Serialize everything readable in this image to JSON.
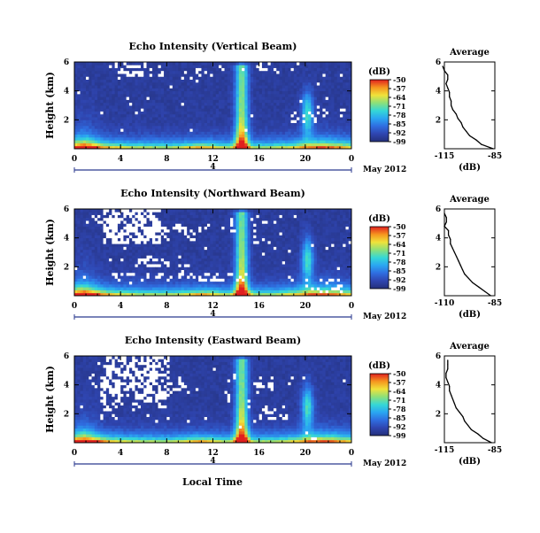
{
  "figure": {
    "date_label": "May 2012",
    "xlabel": "Local Time",
    "day_label": "4",
    "colorbar_unit": "(dB)",
    "colorbar_ticks": [
      "-50",
      "-57",
      "-64",
      "-71",
      "-78",
      "-85",
      "-92",
      "-99"
    ],
    "colormap": [
      "#24307a",
      "#2f45b0",
      "#2f6de0",
      "#2aa6f2",
      "#35d8d6",
      "#8ce07a",
      "#f0e23a",
      "#f6951f",
      "#e01f1f"
    ],
    "background_color": "#373c7e",
    "missing_color": "#ffffff"
  },
  "chart_data": [
    {
      "type": "heatmap",
      "title": "Echo Intensity (Vertical Beam)",
      "ylabel": "Height (km)",
      "x_ticks": [
        "0",
        "4",
        "8",
        "12",
        "16",
        "20",
        "0"
      ],
      "y_ticks": [
        "2",
        "4",
        "6"
      ],
      "xlim": [
        0,
        24
      ],
      "ylim": [
        0,
        6
      ],
      "zlim": [
        -99,
        -50
      ],
      "average": {
        "title": "Average",
        "xlabel": "(dB)",
        "x_ticks": [
          "-115",
          "-85"
        ],
        "y_ticks": [
          "2",
          "4",
          "6"
        ],
        "xlim": [
          -115,
          -85
        ],
        "heights": [
          0,
          0.3,
          0.6,
          0.9,
          1.2,
          1.5,
          1.8,
          2.1,
          2.4,
          2.7,
          3.0,
          3.3,
          3.6,
          3.9,
          4.2,
          4.5,
          4.8,
          5.1,
          5.4,
          5.7
        ],
        "values": [
          -86,
          -93,
          -96,
          -100,
          -102,
          -104,
          -105,
          -107,
          -108,
          -110,
          -111,
          -111,
          -112,
          -112,
          -113,
          -114,
          -113,
          -113,
          -115,
          -116
        ]
      }
    },
    {
      "type": "heatmap",
      "title": "Echo Intensity (Northward Beam)",
      "ylabel": "Height (km)",
      "x_ticks": [
        "0",
        "4",
        "8",
        "12",
        "16",
        "20",
        "0"
      ],
      "y_ticks": [
        "2",
        "4",
        "6"
      ],
      "xlim": [
        0,
        24
      ],
      "ylim": [
        0,
        6
      ],
      "zlim": [
        -99,
        -50
      ],
      "average": {
        "title": "Average",
        "xlabel": "(dB)",
        "x_ticks": [
          "-110",
          "-85"
        ],
        "y_ticks": [
          "2",
          "4",
          "6"
        ],
        "xlim": [
          -110,
          -85
        ],
        "heights": [
          0,
          0.3,
          0.6,
          0.9,
          1.2,
          1.5,
          1.8,
          2.1,
          2.4,
          2.7,
          3.0,
          3.3,
          3.6,
          3.9,
          4.2,
          4.5,
          4.8,
          5.1,
          5.4,
          5.7
        ],
        "values": [
          -87,
          -90,
          -93,
          -96,
          -98,
          -100,
          -101,
          -102,
          -103,
          -104,
          -105,
          -106,
          -107,
          -107,
          -108,
          -108,
          -110,
          -109,
          -109,
          -110
        ]
      }
    },
    {
      "type": "heatmap",
      "title": "Echo Intensity (Eastward Beam)",
      "ylabel": "Height (km)",
      "x_ticks": [
        "0",
        "4",
        "8",
        "12",
        "16",
        "20",
        "0"
      ],
      "y_ticks": [
        "2",
        "4",
        "6"
      ],
      "xlim": [
        0,
        24
      ],
      "ylim": [
        0,
        6
      ],
      "zlim": [
        -99,
        -50
      ],
      "average": {
        "title": "Average",
        "xlabel": "(dB)",
        "x_ticks": [
          "-115",
          "-85"
        ],
        "y_ticks": [
          "2",
          "4",
          "6"
        ],
        "xlim": [
          -115,
          -85
        ],
        "heights": [
          0,
          0.3,
          0.6,
          0.9,
          1.2,
          1.5,
          1.8,
          2.1,
          2.4,
          2.7,
          3.0,
          3.3,
          3.6,
          3.9,
          4.2,
          4.5,
          4.8,
          5.1,
          5.4,
          5.7
        ],
        "values": [
          -87,
          -92,
          -95,
          -99,
          -101,
          -103,
          -104,
          -106,
          -108,
          -109,
          -110,
          -111,
          -112,
          -112,
          -113,
          -114,
          -114,
          -113,
          -113,
          -113
        ]
      }
    }
  ]
}
